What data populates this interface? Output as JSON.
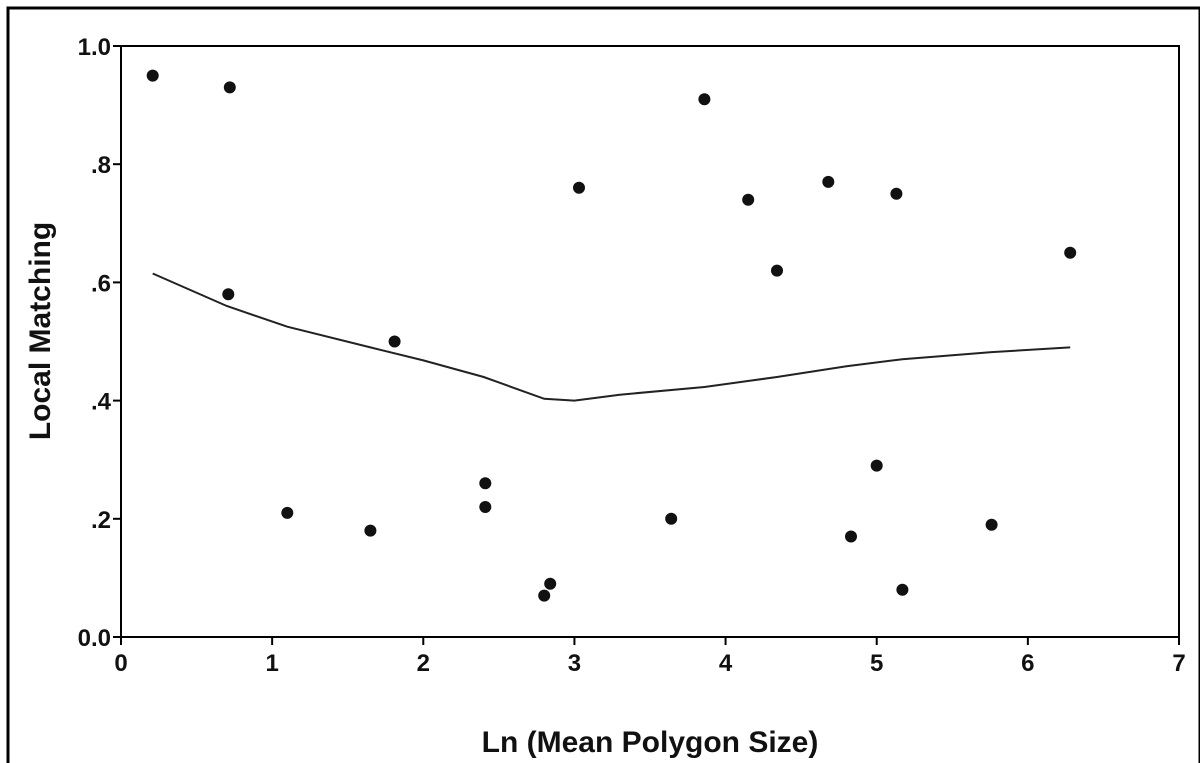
{
  "chart_data": {
    "type": "scatter",
    "title": "",
    "xlabel": "Ln (Mean Polygon Size)",
    "ylabel": "Local Matching",
    "xlim": [
      0,
      7
    ],
    "ylim": [
      0,
      1
    ],
    "x_ticks": [
      0,
      1,
      2,
      3,
      4,
      5,
      6,
      7
    ],
    "x_tick_labels": [
      "0",
      "1",
      "2",
      "3",
      "4",
      "5",
      "6",
      "7"
    ],
    "y_ticks": [
      0,
      0.2,
      0.4,
      0.6,
      0.8,
      1.0
    ],
    "y_tick_labels": [
      "0.0",
      ".2",
      ".4",
      ".6",
      ".8",
      "1.0"
    ],
    "grid": false,
    "legend": "none",
    "point_color": "#111111",
    "line_color": "#222222",
    "points": [
      {
        "x": 0.21,
        "y": 0.95
      },
      {
        "x": 0.72,
        "y": 0.93
      },
      {
        "x": 0.71,
        "y": 0.58
      },
      {
        "x": 1.1,
        "y": 0.21
      },
      {
        "x": 1.65,
        "y": 0.18
      },
      {
        "x": 1.81,
        "y": 0.5
      },
      {
        "x": 2.41,
        "y": 0.26
      },
      {
        "x": 2.41,
        "y": 0.22
      },
      {
        "x": 2.8,
        "y": 0.07
      },
      {
        "x": 2.84,
        "y": 0.09
      },
      {
        "x": 3.03,
        "y": 0.76
      },
      {
        "x": 3.64,
        "y": 0.2
      },
      {
        "x": 3.86,
        "y": 0.91
      },
      {
        "x": 4.15,
        "y": 0.74
      },
      {
        "x": 4.34,
        "y": 0.62
      },
      {
        "x": 4.68,
        "y": 0.77
      },
      {
        "x": 4.83,
        "y": 0.17
      },
      {
        "x": 5.0,
        "y": 0.29
      },
      {
        "x": 5.13,
        "y": 0.75
      },
      {
        "x": 5.17,
        "y": 0.08
      },
      {
        "x": 5.76,
        "y": 0.19
      },
      {
        "x": 6.28,
        "y": 0.65
      }
    ],
    "fit_line": [
      {
        "x": 0.21,
        "y": 0.615
      },
      {
        "x": 0.7,
        "y": 0.56
      },
      {
        "x": 1.1,
        "y": 0.525
      },
      {
        "x": 1.65,
        "y": 0.49
      },
      {
        "x": 2.0,
        "y": 0.468
      },
      {
        "x": 2.4,
        "y": 0.44
      },
      {
        "x": 2.8,
        "y": 0.403
      },
      {
        "x": 3.0,
        "y": 0.4
      },
      {
        "x": 3.3,
        "y": 0.41
      },
      {
        "x": 3.86,
        "y": 0.423
      },
      {
        "x": 4.34,
        "y": 0.44
      },
      {
        "x": 4.8,
        "y": 0.458
      },
      {
        "x": 5.17,
        "y": 0.47
      },
      {
        "x": 5.76,
        "y": 0.482
      },
      {
        "x": 6.28,
        "y": 0.49
      }
    ]
  }
}
